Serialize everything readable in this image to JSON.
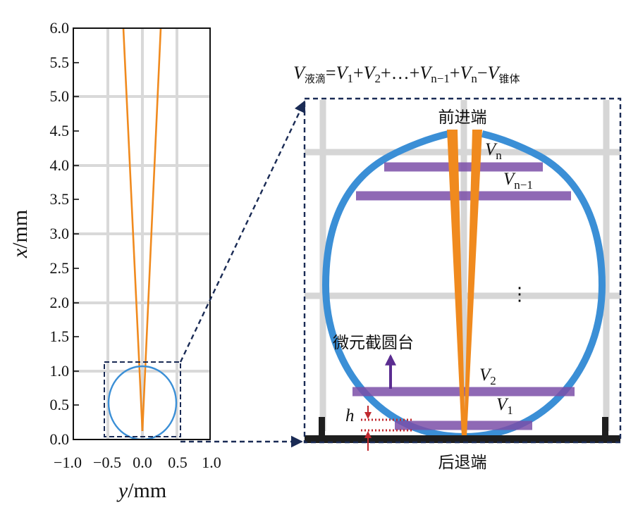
{
  "left_plot": {
    "x_axis": {
      "var": "y",
      "unit": "/mm",
      "ticks": [
        "−1.0",
        "−0.5",
        "0.0",
        "0.5",
        "1.0"
      ],
      "range": [
        -1.0,
        1.0
      ]
    },
    "y_axis": {
      "var": "x",
      "unit": "/mm",
      "ticks": [
        "0.0",
        "0.5",
        "1.0",
        "1.5",
        "2.0",
        "2.5",
        "3.0",
        "3.5",
        "4.0",
        "4.5",
        "5.0",
        "5.5",
        "6.0"
      ],
      "range": [
        0.0,
        6.0
      ]
    },
    "gridlines": true,
    "colors": {
      "needle": "#f08a1e",
      "droplet": "#3b8fd6",
      "grid": "#d9d9d9"
    }
  },
  "formula": {
    "V": "V",
    "drop_sub": "液滴",
    "eq": "=",
    "v1": "1",
    "plus1": "+",
    "v2": "2",
    "plus2": "+…+",
    "vn1": "n−1",
    "plus3": "+",
    "vn": "n",
    "minus": "−",
    "cone_sub": "锥体"
  },
  "detail": {
    "top_label": "前进端",
    "bottom_label": "后退端",
    "slice_label": "微元截圆台",
    "h_label": "h",
    "dots": "⋮",
    "labels": {
      "v": "V",
      "n": "n",
      "n1": "n−1",
      "two": "2",
      "one": "1"
    },
    "colors": {
      "slice": "#7b4fa8",
      "droplet": "#3b8fd6",
      "needle": "#f08a1e",
      "frame": "#1a2b55",
      "h_marker": "#c0282e"
    }
  }
}
